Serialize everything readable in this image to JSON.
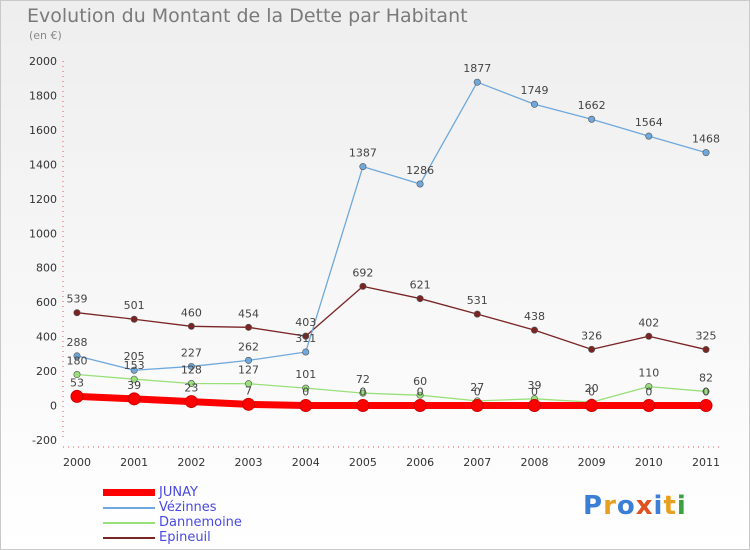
{
  "title": "Evolution du Montant de la Dette par Habitant",
  "subtitle": "(en €)",
  "logo": "Proxiti",
  "chart_data": {
    "type": "line",
    "x": [
      "2000",
      "2001",
      "2002",
      "2003",
      "2004",
      "2005",
      "2006",
      "2007",
      "2008",
      "2009",
      "2010",
      "2011"
    ],
    "ylim": [
      -200,
      2000
    ],
    "yticks": [
      -200,
      0,
      200,
      400,
      600,
      800,
      1000,
      1200,
      1400,
      1600,
      1800,
      2000
    ],
    "grid": false,
    "legend_position": "bottom-left",
    "series": [
      {
        "name": "JUNAY",
        "color": "#ff0000",
        "values": [
          53,
          39,
          23,
          7,
          0,
          0,
          0,
          0,
          0,
          0,
          0,
          0
        ],
        "labels": [
          "53",
          "39",
          "23",
          "7",
          "0",
          "0",
          "0",
          "0",
          "0",
          "0",
          "0",
          "0"
        ]
      },
      {
        "name": "Vézinnes",
        "color": "#6fa8dc",
        "values": [
          288,
          205,
          227,
          262,
          311,
          1387,
          1286,
          1877,
          1749,
          1662,
          1564,
          1468
        ],
        "labels": [
          "288",
          "205",
          "227",
          "262",
          "311",
          "1387",
          "1286",
          "1877",
          "1749",
          "1662",
          "1564",
          "1468"
        ]
      },
      {
        "name": "Dannemoine",
        "color": "#99e07a",
        "values": [
          180,
          153,
          128,
          127,
          101,
          72,
          60,
          27,
          39,
          20,
          110,
          82
        ],
        "labels": [
          "180",
          "153",
          "128",
          "127",
          "101",
          "72",
          "60",
          "27",
          "39",
          "20",
          "110",
          "82"
        ]
      },
      {
        "name": "Epineuil",
        "color": "#7a2424",
        "values": [
          539,
          501,
          460,
          454,
          403,
          692,
          621,
          531,
          438,
          326,
          402,
          325
        ],
        "labels": [
          "539",
          "501",
          "460",
          "454",
          "403",
          "692",
          "621",
          "531",
          "438",
          "326",
          "402",
          "325"
        ]
      }
    ]
  }
}
